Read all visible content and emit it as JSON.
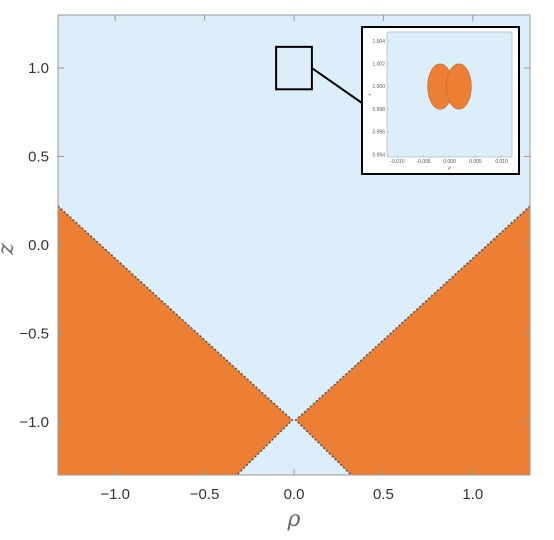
{
  "chart_data": [
    {
      "type": "area",
      "xlabel": "ρ",
      "ylabel": "z",
      "xlim": [
        -1.32,
        1.32
      ],
      "ylim": [
        -1.3,
        1.3
      ],
      "xticks": [
        -1.0,
        -0.5,
        0.0,
        0.5,
        1.0
      ],
      "xtick_labels": [
        "−1.0",
        "−0.5",
        "0.0",
        "0.5",
        "1.0"
      ],
      "yticks": [
        1.0,
        0.5,
        0.0,
        -0.5,
        -1.0
      ],
      "ytick_labels": [
        "1.0",
        "0.5",
        "0.0",
        "−0.5",
        "−1.0"
      ],
      "background_color": "#ddeefb",
      "region_color": "#ed7f35",
      "boundary_color": "#555555",
      "regions": [
        {
          "points": [
            [
              -1.32,
              0.22
            ],
            [
              -0.01,
              -0.99
            ],
            [
              -0.32,
              -1.3
            ],
            [
              -1.32,
              -1.3
            ]
          ]
        },
        {
          "points": [
            [
              1.32,
              0.22
            ],
            [
              0.01,
              -0.99
            ],
            [
              0.32,
              -1.3
            ],
            [
              1.32,
              -1.3
            ]
          ]
        }
      ],
      "zoom_box": {
        "x": [
          -0.1,
          0.1
        ],
        "y": [
          0.88,
          1.12
        ]
      }
    },
    {
      "type": "area",
      "xlim": [
        -0.012,
        0.012
      ],
      "ylim": [
        0.9938,
        1.0048
      ],
      "xticks": [
        -0.01,
        -0.005,
        0.0,
        0.005,
        0.01
      ],
      "xtick_labels": [
        "-0.010",
        "-0.005",
        "0.000",
        "0.005",
        "0.010"
      ],
      "yticks": [
        1.004,
        1.002,
        1.0,
        0.998,
        0.996,
        0.994
      ],
      "ytick_labels": [
        "1.004",
        "1.002",
        "1.000",
        "0.998",
        "0.996",
        "0.994"
      ],
      "xlabel": "ρ",
      "ylabel": "z",
      "ellipses": [
        {
          "cx": -0.0018,
          "cy": 1.0,
          "rx": 0.0024,
          "ry": 0.002
        },
        {
          "cx": 0.0018,
          "cy": 1.0,
          "rx": 0.0024,
          "ry": 0.002
        }
      ]
    }
  ]
}
